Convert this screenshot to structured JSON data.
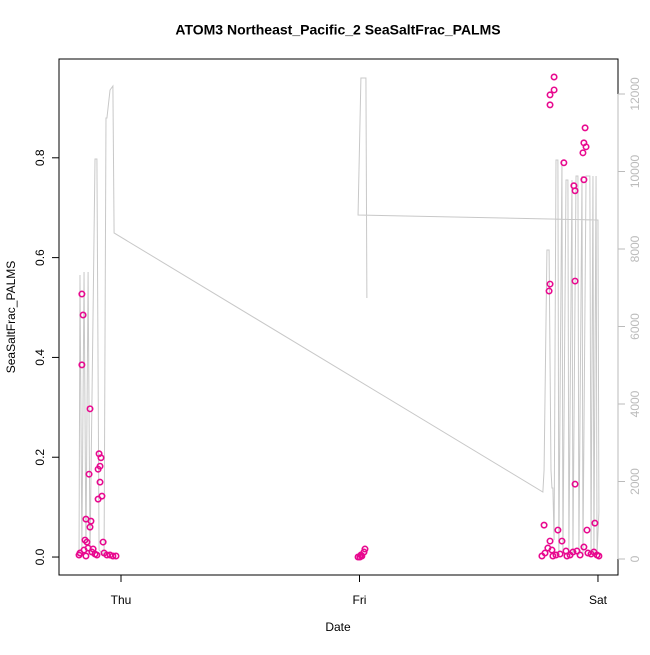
{
  "chart_data": {
    "type": "scatter",
    "title": "ATOM3 Northeast_Pacific_2 SeaSaltFrac_PALMS",
    "xlabel": "Date",
    "ylabel": "SeaSaltFrac_PALMS",
    "color": "#e8098f",
    "x": [
      -0.164,
      -0.159,
      -0.164,
      -0.13,
      -0.134,
      -0.147,
      -0.126,
      -0.13,
      -0.092,
      -0.084,
      -0.088,
      -0.096,
      -0.088,
      -0.08,
      -0.096,
      -0.075,
      -0.151,
      -0.143,
      -0.172,
      -0.155,
      -0.138,
      -0.122,
      -0.109,
      -0.101,
      -0.071,
      -0.059,
      -0.046,
      -0.034,
      -0.021,
      -0.176,
      -0.117,
      -0.147,
      0.994,
      1.002,
      1.01,
      1.023,
      1.019,
      1.006,
      1.816,
      1.816,
      1.799,
      1.799,
      1.799,
      1.795,
      1.946,
      1.95,
      1.941,
      1.937,
      1.857,
      1.899,
      1.904,
      1.941,
      1.904,
      1.904,
      1.774,
      1.799,
      1.832,
      1.954,
      1.849,
      1.987,
      1.778,
      1.79,
      1.807,
      1.824,
      1.841,
      1.866,
      1.883,
      1.895,
      1.912,
      1.925,
      1.941,
      1.958,
      1.971,
      1.983,
      1.996,
      2.004,
      1.765,
      1.811,
      1.87
    ],
    "values": [
      0.527,
      0.485,
      0.385,
      0.297,
      0.166,
      0.076,
      0.072,
      0.06,
      0.207,
      0.199,
      0.182,
      0.176,
      0.15,
      0.122,
      0.116,
      0.03,
      0.034,
      0.03,
      0.008,
      0.014,
      0.018,
      0.01,
      0.006,
      0.004,
      0.008,
      0.004,
      0.004,
      0.002,
      0.002,
      0.004,
      0.016,
      0.002,
      0,
      0,
      0.002,
      0.016,
      0.01,
      0.004,
      0.962,
      0.936,
      0.926,
      0.906,
      0.547,
      0.533,
      0.86,
      0.822,
      0.83,
      0.81,
      0.79,
      0.744,
      0.734,
      0.756,
      0.553,
      0.146,
      0.064,
      0.032,
      0.054,
      0.054,
      0.032,
      0.068,
      0.008,
      0.018,
      0.014,
      0.004,
      0.006,
      0.012,
      0.004,
      0.01,
      0.012,
      0.004,
      0.02,
      0.008,
      0.006,
      0.01,
      0.004,
      0.002,
      0.002,
      0.002,
      0.002
    ],
    "xlim": [
      -0.26,
      2.084
    ],
    "xticks": [
      {
        "value": 0,
        "label": "Thu"
      },
      {
        "value": 1,
        "label": "Fri"
      },
      {
        "value": 2,
        "label": "Sat"
      }
    ],
    "ylim": [
      -0.036,
      0.998
    ],
    "yticks": [
      {
        "value": 0,
        "label": "0.0"
      },
      0.2,
      0.4,
      0.6,
      0.8
    ],
    "y2lim": [
      -413,
      12903
    ],
    "y2ticks": [
      0,
      2000,
      4000,
      6000,
      8000,
      10000,
      12000
    ],
    "series": [
      {
        "type": "line",
        "axis": "y2",
        "color": "#c8c8c8",
        "x": [
          -0.176,
          -0.172,
          -0.164,
          -0.155,
          -0.147,
          -0.138,
          -0.13,
          -0.109,
          -0.101,
          -0.092,
          -0.071,
          -0.063,
          -0.059,
          -0.046,
          -0.034,
          -0.029,
          1.769,
          1.774,
          1.786,
          1.795,
          1.803,
          1.807,
          1.811,
          1.816,
          1.824,
          1.832,
          1.836,
          1.849,
          1.853,
          1.866,
          1.874,
          1.878,
          1.891,
          1.895,
          1.908,
          1.916,
          1.92,
          1.933,
          1.937,
          1.95,
          1.966,
          1.971,
          1.979,
          1.983,
          1.992,
          1.996,
          2.004,
          2.0,
          0.994,
          1.006,
          1.027,
          1.031
        ],
        "values": [
          103,
          7329,
          181,
          7406,
          181,
          7406,
          103,
          10322,
          10322,
          232,
          103,
          11381,
          11381,
          12103,
          12206,
          8413,
          1729,
          2297,
          7974,
          7974,
          2297,
          1832,
          1832,
          490,
          10297,
          10297,
          103,
          10297,
          103,
          9781,
          9781,
          103,
          9781,
          103,
          9884,
          9884,
          103,
          9884,
          103,
          9884,
          9884,
          103,
          9884,
          103,
          9884,
          103,
          1213,
          8748,
          8877,
          12413,
          12413,
          6735
        ]
      }
    ]
  }
}
